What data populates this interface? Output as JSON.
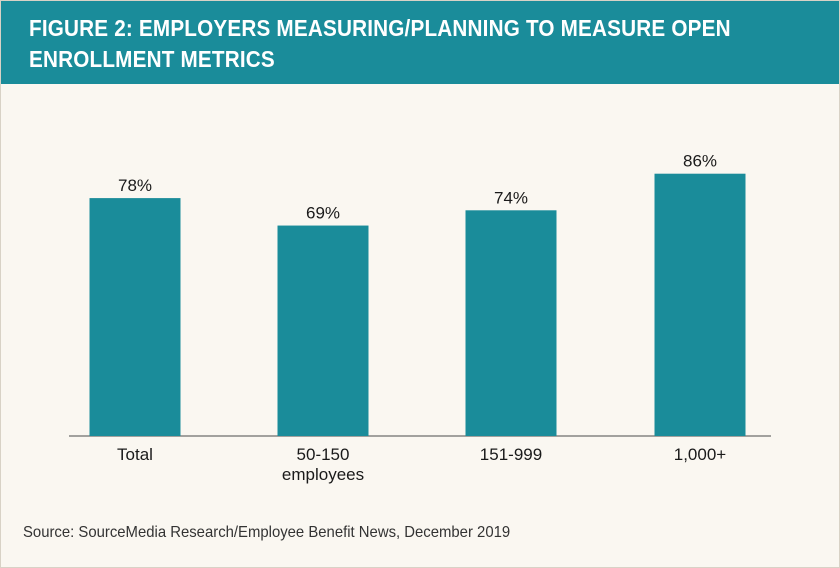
{
  "header": {
    "title": "FIGURE 2: EMPLOYERS MEASURING/PLANNING TO MEASURE OPEN ENROLLMENT METRICS"
  },
  "source": "Source: SourceMedia Research/Employee Benefit News, December 2019",
  "colors": {
    "accent": "#1a8c9a",
    "background": "#faf7f1",
    "text": "#1a1a1a"
  },
  "chart_data": {
    "type": "bar",
    "title": "FIGURE 2: EMPLOYERS MEASURING/PLANNING TO MEASURE OPEN ENROLLMENT METRICS",
    "categories": [
      [
        "Total"
      ],
      [
        "50-150",
        "employees"
      ],
      [
        "151-999"
      ],
      [
        "1,000+"
      ]
    ],
    "values": [
      78,
      69,
      74,
      86
    ],
    "value_labels": [
      "78%",
      "69%",
      "74%",
      "86%"
    ],
    "unit": "%",
    "xlabel": "",
    "ylabel": "",
    "ylim": [
      0,
      100
    ],
    "grid": false,
    "legend": "none"
  }
}
